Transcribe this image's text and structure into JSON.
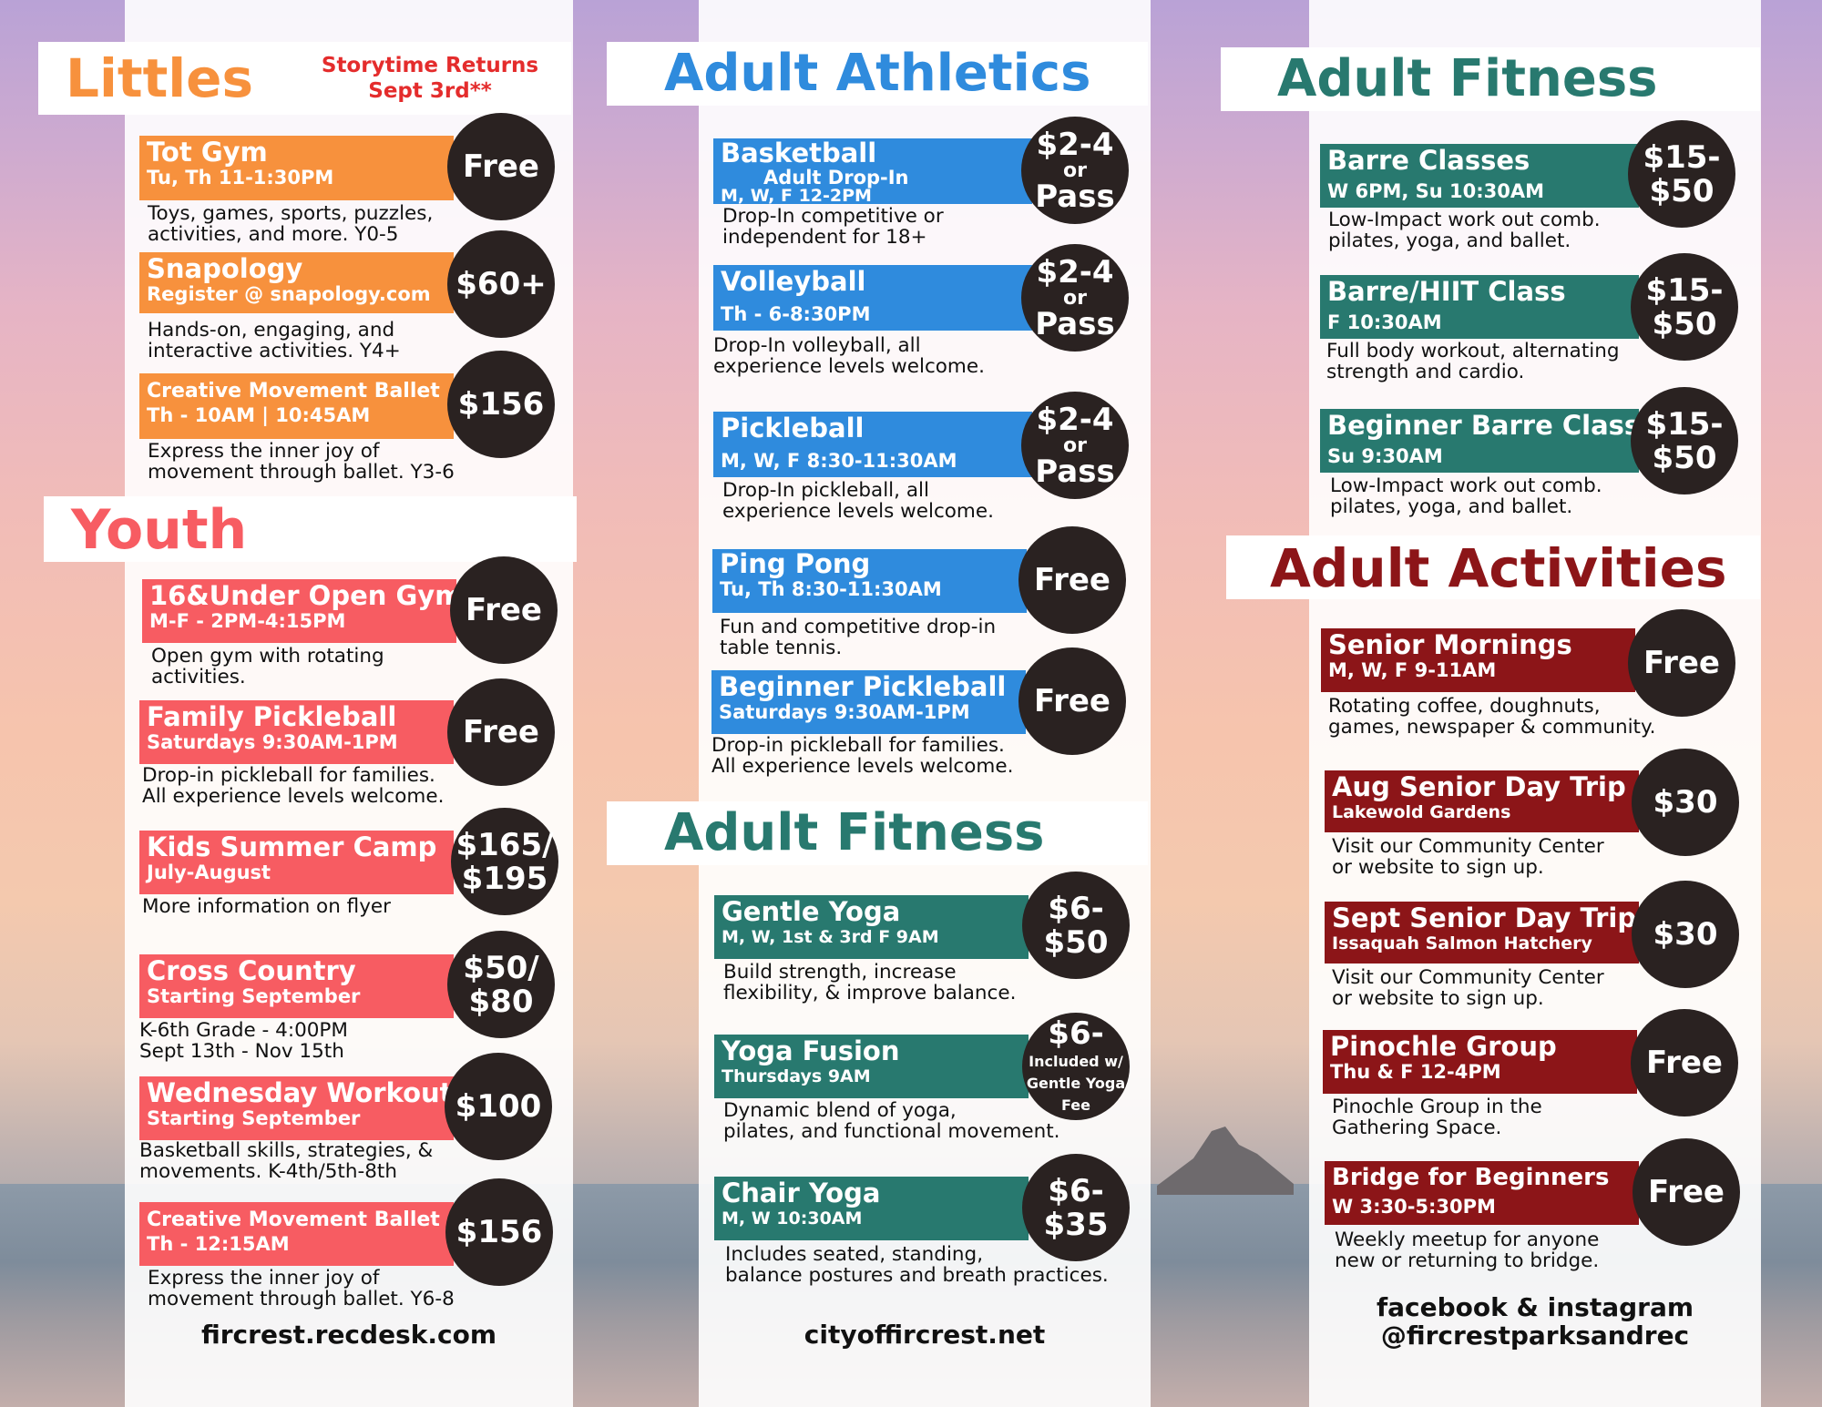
{
  "littles": {
    "title": "Littles",
    "notice": "Storytime Returns\nSept 3rd**",
    "programs": [
      {
        "name": "Tot Gym",
        "schedule": "Tu, Th 11-1:30PM",
        "desc": "Toys, games, sports, puzzles,\nactivities, and more. Y0-5",
        "price": "Free"
      },
      {
        "name": "Snapology",
        "schedule": "Register @ snapology.com",
        "desc": "Hands-on, engaging, and\ninteractive activities. Y4+",
        "price": "$60+"
      },
      {
        "name": "Creative Movement Ballet",
        "schedule": "Th - 10AM | 10:45AM",
        "desc": "Express the inner joy of\nmovement through ballet. Y3-6",
        "price": "$156"
      }
    ]
  },
  "youth": {
    "title": "Youth",
    "programs": [
      {
        "name": "16&Under Open Gym",
        "schedule": "M-F - 2PM-4:15PM",
        "desc": "Open gym with rotating\nactivities.",
        "price": "Free"
      },
      {
        "name": "Family Pickleball",
        "schedule": "Saturdays 9:30AM-1PM",
        "desc": "Drop-in pickleball for families.\nAll experience levels welcome.",
        "price": "Free"
      },
      {
        "name": "Kids Summer Camp",
        "schedule": "July-August",
        "desc": "More information on flyer",
        "price_line1": "$165/",
        "price_line2": "$195"
      },
      {
        "name": "Cross Country",
        "schedule": "Starting September",
        "desc": "K-6th Grade - 4:00PM\nSept 13th - Nov 15th",
        "price_line1": "$50/",
        "price_line2": "$80"
      },
      {
        "name": "Wednesday Workouts",
        "schedule": "Starting September",
        "desc": "Basketball skills, strategies, &\nmovements. K-4th/5th-8th",
        "price": "$100"
      },
      {
        "name": "Creative Movement Ballet",
        "schedule": "Th - 12:15AM",
        "desc": "Express the inner joy of\nmovement through ballet. Y6-8",
        "price": "$156"
      }
    ],
    "footer": "fircrest.recdesk.com"
  },
  "adult_athletics": {
    "title": "Adult Athletics",
    "programs": [
      {
        "name": "Basketball",
        "subtitle": "Adult Drop-In",
        "schedule": "M, W, F 12-2PM",
        "desc": "Drop-In competitive or\nindependent for 18+",
        "price_line1": "$2-4",
        "price_or": "or",
        "price_line2": "Pass"
      },
      {
        "name": "Volleyball",
        "schedule": "Th - 6-8:30PM",
        "desc": "Drop-In volleyball, all\nexperience levels welcome.",
        "price_line1": "$2-4",
        "price_or": "or",
        "price_line2": "Pass"
      },
      {
        "name": "Pickleball",
        "schedule": "M, W, F 8:30-11:30AM",
        "desc": "Drop-In pickleball, all\nexperience levels welcome.",
        "price_line1": "$2-4",
        "price_or": "or",
        "price_line2": "Pass"
      },
      {
        "name": "Ping Pong",
        "schedule": "Tu, Th 8:30-11:30AM",
        "desc": "Fun and competitive drop-in\ntable tennis.",
        "price": "Free"
      },
      {
        "name": "Beginner Pickleball",
        "schedule": "Saturdays 9:30AM-1PM",
        "desc": "Drop-in pickleball for families.\nAll experience levels welcome.",
        "price": "Free"
      }
    ]
  },
  "adult_fitness_mid": {
    "title": "Adult Fitness",
    "programs": [
      {
        "name": "Gentle Yoga",
        "schedule": "M, W, 1st & 3rd F 9AM",
        "desc": "Build strength, increase\nflexibility, & improve balance.",
        "price_line1": "$6-",
        "price_line2": "$50"
      },
      {
        "name": "Yoga Fusion",
        "schedule": "Thursdays 9AM",
        "desc": "Dynamic blend of yoga,\npilates, and functional movement.",
        "price_line1": "$6-",
        "price_note": "Included w/\nGentle Yoga\nFee"
      },
      {
        "name": "Chair Yoga",
        "schedule": "M, W 10:30AM",
        "desc": "Includes seated, standing,\nbalance postures and breath practices.",
        "price_line1": "$6-",
        "price_line2": "$35"
      }
    ],
    "footer": "cityoffircrest.net"
  },
  "adult_fitness_right": {
    "title": "Adult Fitness",
    "programs": [
      {
        "name": "Barre Classes",
        "schedule": "W 6PM, Su 10:30AM",
        "desc": "Low-Impact work out comb.\npilates, yoga, and ballet.",
        "price_line1": "$15-",
        "price_line2": "$50"
      },
      {
        "name": "Barre/HIIT Class",
        "schedule": "F 10:30AM",
        "desc": "Full body workout, alternating\nstrength and cardio.",
        "price_line1": "$15-",
        "price_line2": "$50"
      },
      {
        "name": "Beginner Barre Class",
        "schedule": "Su 9:30AM",
        "desc": "Low-Impact work out comb.\npilates, yoga, and ballet.",
        "price_line1": "$15-",
        "price_line2": "$50"
      }
    ]
  },
  "adult_activities": {
    "title": "Adult Activities",
    "programs": [
      {
        "name": "Senior Mornings",
        "schedule": "M, W, F 9-11AM",
        "desc": "Rotating coffee, doughnuts,\ngames, newspaper & community.",
        "price": "Free"
      },
      {
        "name": "Aug Senior Day Trip",
        "schedule": "Lakewold Gardens",
        "desc": "Visit our Community Center\nor website to sign up.",
        "price": "$30"
      },
      {
        "name": "Sept Senior Day Trip",
        "schedule": "Issaquah Salmon Hatchery",
        "desc": "Visit our Community Center\nor website to sign up.",
        "price": "$30"
      },
      {
        "name": "Pinochle Group",
        "schedule": "Thu & F  12-4PM",
        "desc": "Pinochle Group in the\nGathering Space.",
        "price": "Free"
      },
      {
        "name": "Bridge for Beginners",
        "schedule": "W 3:30-5:30PM",
        "desc": "Weekly meetup for anyone\nnew or returning to bridge.",
        "price": "Free"
      }
    ],
    "footer": "facebook & instagram\n@fircrestparksandrec"
  },
  "colors": {
    "littles": "#f7913d",
    "youth": "#f75c62",
    "athletics": "#2f8bdd",
    "fitness": "#28796f",
    "activities": "#8c1518",
    "price_circle": "#2a2221"
  }
}
